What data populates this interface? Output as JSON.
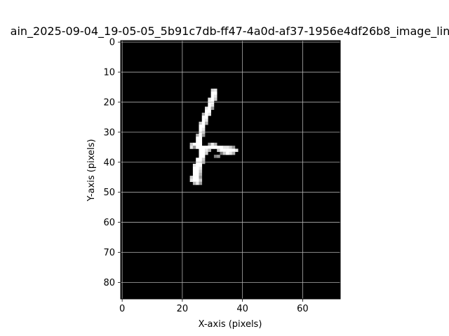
{
  "chart_data": {
    "type": "heatmap",
    "title": "ain_2025-09-04_19-05-05_5b91c7db-ff47-4a0d-af37-1956e4df26b8_image_lin",
    "xlabel": "X-axis (pixels)",
    "ylabel": "Y-axis (pixels)",
    "xlim": [
      -0.5,
      72.5
    ],
    "ylim": [
      85.5,
      -0.5
    ],
    "x_ticks": [
      0,
      20,
      40,
      60
    ],
    "y_ticks": [
      0,
      10,
      20,
      30,
      40,
      50,
      60,
      70,
      80
    ],
    "grid": true,
    "colormap": "gray",
    "background_value": 0,
    "stroke_pixels": [
      [
        30,
        16,
        0.85
      ],
      [
        31,
        16,
        0.9
      ],
      [
        30,
        17,
        1
      ],
      [
        31,
        17,
        1
      ],
      [
        30,
        18,
        1
      ],
      [
        31,
        18,
        0.9
      ],
      [
        29,
        19,
        0.9
      ],
      [
        30,
        19,
        1
      ],
      [
        31,
        19,
        0.8
      ],
      [
        29,
        20,
        1
      ],
      [
        30,
        20,
        1
      ],
      [
        29,
        21,
        1
      ],
      [
        30,
        21,
        0.9
      ],
      [
        28,
        22,
        0.9
      ],
      [
        29,
        22,
        1
      ],
      [
        30,
        22,
        0.6
      ],
      [
        28,
        23,
        1
      ],
      [
        29,
        23,
        1
      ],
      [
        27,
        24,
        0.7
      ],
      [
        28,
        24,
        1
      ],
      [
        29,
        24,
        0.9
      ],
      [
        27,
        25,
        1
      ],
      [
        28,
        25,
        1
      ],
      [
        27,
        26,
        1
      ],
      [
        28,
        26,
        0.9
      ],
      [
        26,
        27,
        0.8
      ],
      [
        27,
        27,
        1
      ],
      [
        28,
        27,
        0.7
      ],
      [
        26,
        28,
        1
      ],
      [
        27,
        28,
        1
      ],
      [
        26,
        29,
        1
      ],
      [
        27,
        29,
        0.9
      ],
      [
        26,
        30,
        1
      ],
      [
        27,
        30,
        0.8
      ],
      [
        25,
        31,
        0.7
      ],
      [
        26,
        31,
        1
      ],
      [
        27,
        31,
        0.6
      ],
      [
        25,
        32,
        1
      ],
      [
        26,
        32,
        1
      ],
      [
        25,
        33,
        1
      ],
      [
        26,
        33,
        1
      ],
      [
        23,
        34,
        0.8
      ],
      [
        24,
        34,
        1
      ],
      [
        25,
        34,
        1
      ],
      [
        26,
        34,
        1
      ],
      [
        29,
        34,
        0.6
      ],
      [
        30,
        34,
        0.9
      ],
      [
        31,
        34,
        0.7
      ],
      [
        23,
        35,
        0.9
      ],
      [
        24,
        35,
        0.6
      ],
      [
        25,
        35,
        1
      ],
      [
        26,
        35,
        1
      ],
      [
        27,
        35,
        1
      ],
      [
        28,
        35,
        1
      ],
      [
        29,
        35,
        1
      ],
      [
        30,
        35,
        1
      ],
      [
        31,
        35,
        1
      ],
      [
        32,
        35,
        1
      ],
      [
        33,
        35,
        1
      ],
      [
        34,
        35,
        0.9
      ],
      [
        35,
        35,
        0.9
      ],
      [
        36,
        35,
        0.8
      ],
      [
        37,
        35,
        0.6
      ],
      [
        26,
        36,
        1
      ],
      [
        27,
        36,
        1
      ],
      [
        28,
        36,
        0.9
      ],
      [
        29,
        36,
        0.7
      ],
      [
        32,
        36,
        0.8
      ],
      [
        33,
        36,
        1
      ],
      [
        34,
        36,
        1
      ],
      [
        35,
        36,
        1
      ],
      [
        36,
        36,
        1
      ],
      [
        37,
        36,
        1
      ],
      [
        38,
        36,
        0.9
      ],
      [
        26,
        37,
        1
      ],
      [
        27,
        37,
        1
      ],
      [
        28,
        37,
        0.8
      ],
      [
        33,
        37,
        0.5
      ],
      [
        34,
        37,
        0.8
      ],
      [
        35,
        37,
        1
      ],
      [
        36,
        37,
        0.9
      ],
      [
        37,
        37,
        0.7
      ],
      [
        26,
        38,
        1
      ],
      [
        27,
        38,
        1
      ],
      [
        31,
        38,
        0.5
      ],
      [
        32,
        38,
        0.6
      ],
      [
        25,
        39,
        1
      ],
      [
        26,
        39,
        1
      ],
      [
        27,
        39,
        0.8
      ],
      [
        25,
        40,
        1
      ],
      [
        26,
        40,
        1
      ],
      [
        27,
        40,
        0.7
      ],
      [
        24,
        41,
        0.9
      ],
      [
        25,
        41,
        1
      ],
      [
        26,
        41,
        1
      ],
      [
        24,
        42,
        1
      ],
      [
        25,
        42,
        1
      ],
      [
        26,
        42,
        0.9
      ],
      [
        24,
        43,
        1
      ],
      [
        25,
        43,
        1
      ],
      [
        26,
        43,
        0.8
      ],
      [
        24,
        44,
        1
      ],
      [
        25,
        44,
        1
      ],
      [
        26,
        44,
        0.7
      ],
      [
        23,
        45,
        0.8
      ],
      [
        24,
        45,
        1
      ],
      [
        25,
        45,
        1
      ],
      [
        26,
        45,
        0.6
      ],
      [
        23,
        46,
        0.9
      ],
      [
        24,
        46,
        1
      ],
      [
        25,
        46,
        1
      ],
      [
        26,
        46,
        0.8
      ],
      [
        24,
        47,
        0.7
      ],
      [
        25,
        47,
        0.9
      ],
      [
        26,
        47,
        0.6
      ]
    ]
  }
}
